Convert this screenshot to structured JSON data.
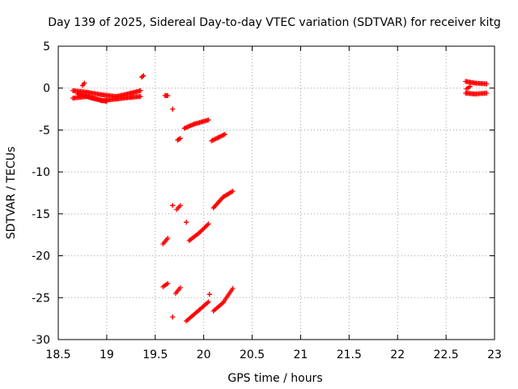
{
  "chart_data": {
    "type": "scatter",
    "title": "Day 139 of 2025, Sidereal Day-to-day VTEC variation (SDTVAR) for receiver kitg",
    "xlabel": "GPS time / hours",
    "ylabel": "SDTVAR / TECUs",
    "xlim": [
      18.5,
      23
    ],
    "ylim": [
      -30,
      5
    ],
    "xticks": [
      18.5,
      19,
      19.5,
      20,
      20.5,
      21,
      21.5,
      22,
      22.5,
      23
    ],
    "xtick_labels": [
      "18.5",
      "19",
      "19.5",
      "20",
      "20.5",
      "21",
      "21.5",
      "22",
      "22.5",
      "23"
    ],
    "yticks": [
      -30,
      -25,
      -20,
      -15,
      -10,
      -5,
      0,
      5
    ],
    "ytick_labels": [
      "-30",
      "-25",
      "-20",
      "-15",
      "-10",
      "-5",
      "0",
      "5"
    ],
    "grid": true,
    "marker": "+",
    "color": "#ff0000",
    "segments": [
      {
        "x": [
          18.65,
          18.8,
          18.95,
          19.1,
          19.25,
          19.35
        ],
        "y": [
          -0.3,
          -0.5,
          -0.8,
          -1.0,
          -0.6,
          -0.3
        ]
      },
      {
        "x": [
          18.65,
          18.8,
          18.95,
          19.1,
          19.25,
          19.35
        ],
        "y": [
          -1.2,
          -1.0,
          -1.5,
          -1.3,
          -1.1,
          -1.0
        ]
      },
      {
        "x": [
          18.7,
          18.85,
          19.0
        ],
        "y": [
          -0.7,
          -1.2,
          -1.6
        ]
      },
      {
        "x": [
          18.75,
          18.77
        ],
        "y": [
          0.3,
          0.6
        ]
      },
      {
        "x": [
          19.36,
          19.38
        ],
        "y": [
          1.3,
          1.5
        ]
      },
      {
        "x": [
          19.6,
          19.63
        ],
        "y": [
          -0.9,
          -0.9
        ]
      },
      {
        "x": [
          19.68,
          19.68
        ],
        "y": [
          -2.5,
          -2.5
        ]
      },
      {
        "x": [
          19.73,
          19.76
        ],
        "y": [
          -6.2,
          -6.0
        ]
      },
      {
        "x": [
          19.8,
          19.9,
          20.05
        ],
        "y": [
          -4.8,
          -4.3,
          -3.8
        ]
      },
      {
        "x": [
          20.08,
          20.15,
          20.22
        ],
        "y": [
          -6.3,
          -5.9,
          -5.5
        ]
      },
      {
        "x": [
          19.68,
          19.68
        ],
        "y": [
          -14.0,
          -14.0
        ]
      },
      {
        "x": [
          19.72,
          19.76
        ],
        "y": [
          -14.5,
          -14.0
        ]
      },
      {
        "x": [
          19.82,
          19.82
        ],
        "y": [
          -16.0,
          -16.0
        ]
      },
      {
        "x": [
          20.1,
          20.2,
          20.3
        ],
        "y": [
          -14.3,
          -13.0,
          -12.3
        ]
      },
      {
        "x": [
          19.58,
          19.63
        ],
        "y": [
          -18.6,
          -17.9
        ]
      },
      {
        "x": [
          19.85,
          19.95,
          20.05
        ],
        "y": [
          -18.2,
          -17.3,
          -16.2
        ]
      },
      {
        "x": [
          19.58,
          19.63
        ],
        "y": [
          -23.7,
          -23.3
        ]
      },
      {
        "x": [
          19.71,
          19.76
        ],
        "y": [
          -24.5,
          -23.8
        ]
      },
      {
        "x": [
          19.68,
          19.68
        ],
        "y": [
          -27.3,
          -27.3
        ]
      },
      {
        "x": [
          19.82,
          19.95,
          20.05
        ],
        "y": [
          -27.8,
          -26.5,
          -25.5
        ]
      },
      {
        "x": [
          20.06,
          20.06
        ],
        "y": [
          -24.6,
          -24.6
        ]
      },
      {
        "x": [
          20.1,
          20.2,
          20.3
        ],
        "y": [
          -26.6,
          -25.6,
          -23.9
        ]
      },
      {
        "x": [
          22.7,
          22.8,
          22.92
        ],
        "y": [
          0.8,
          0.6,
          0.5
        ]
      },
      {
        "x": [
          22.7,
          22.8,
          22.92
        ],
        "y": [
          -0.6,
          -0.7,
          -0.6
        ]
      },
      {
        "x": [
          22.71,
          22.75
        ],
        "y": [
          -0.1,
          0.2
        ]
      }
    ]
  }
}
